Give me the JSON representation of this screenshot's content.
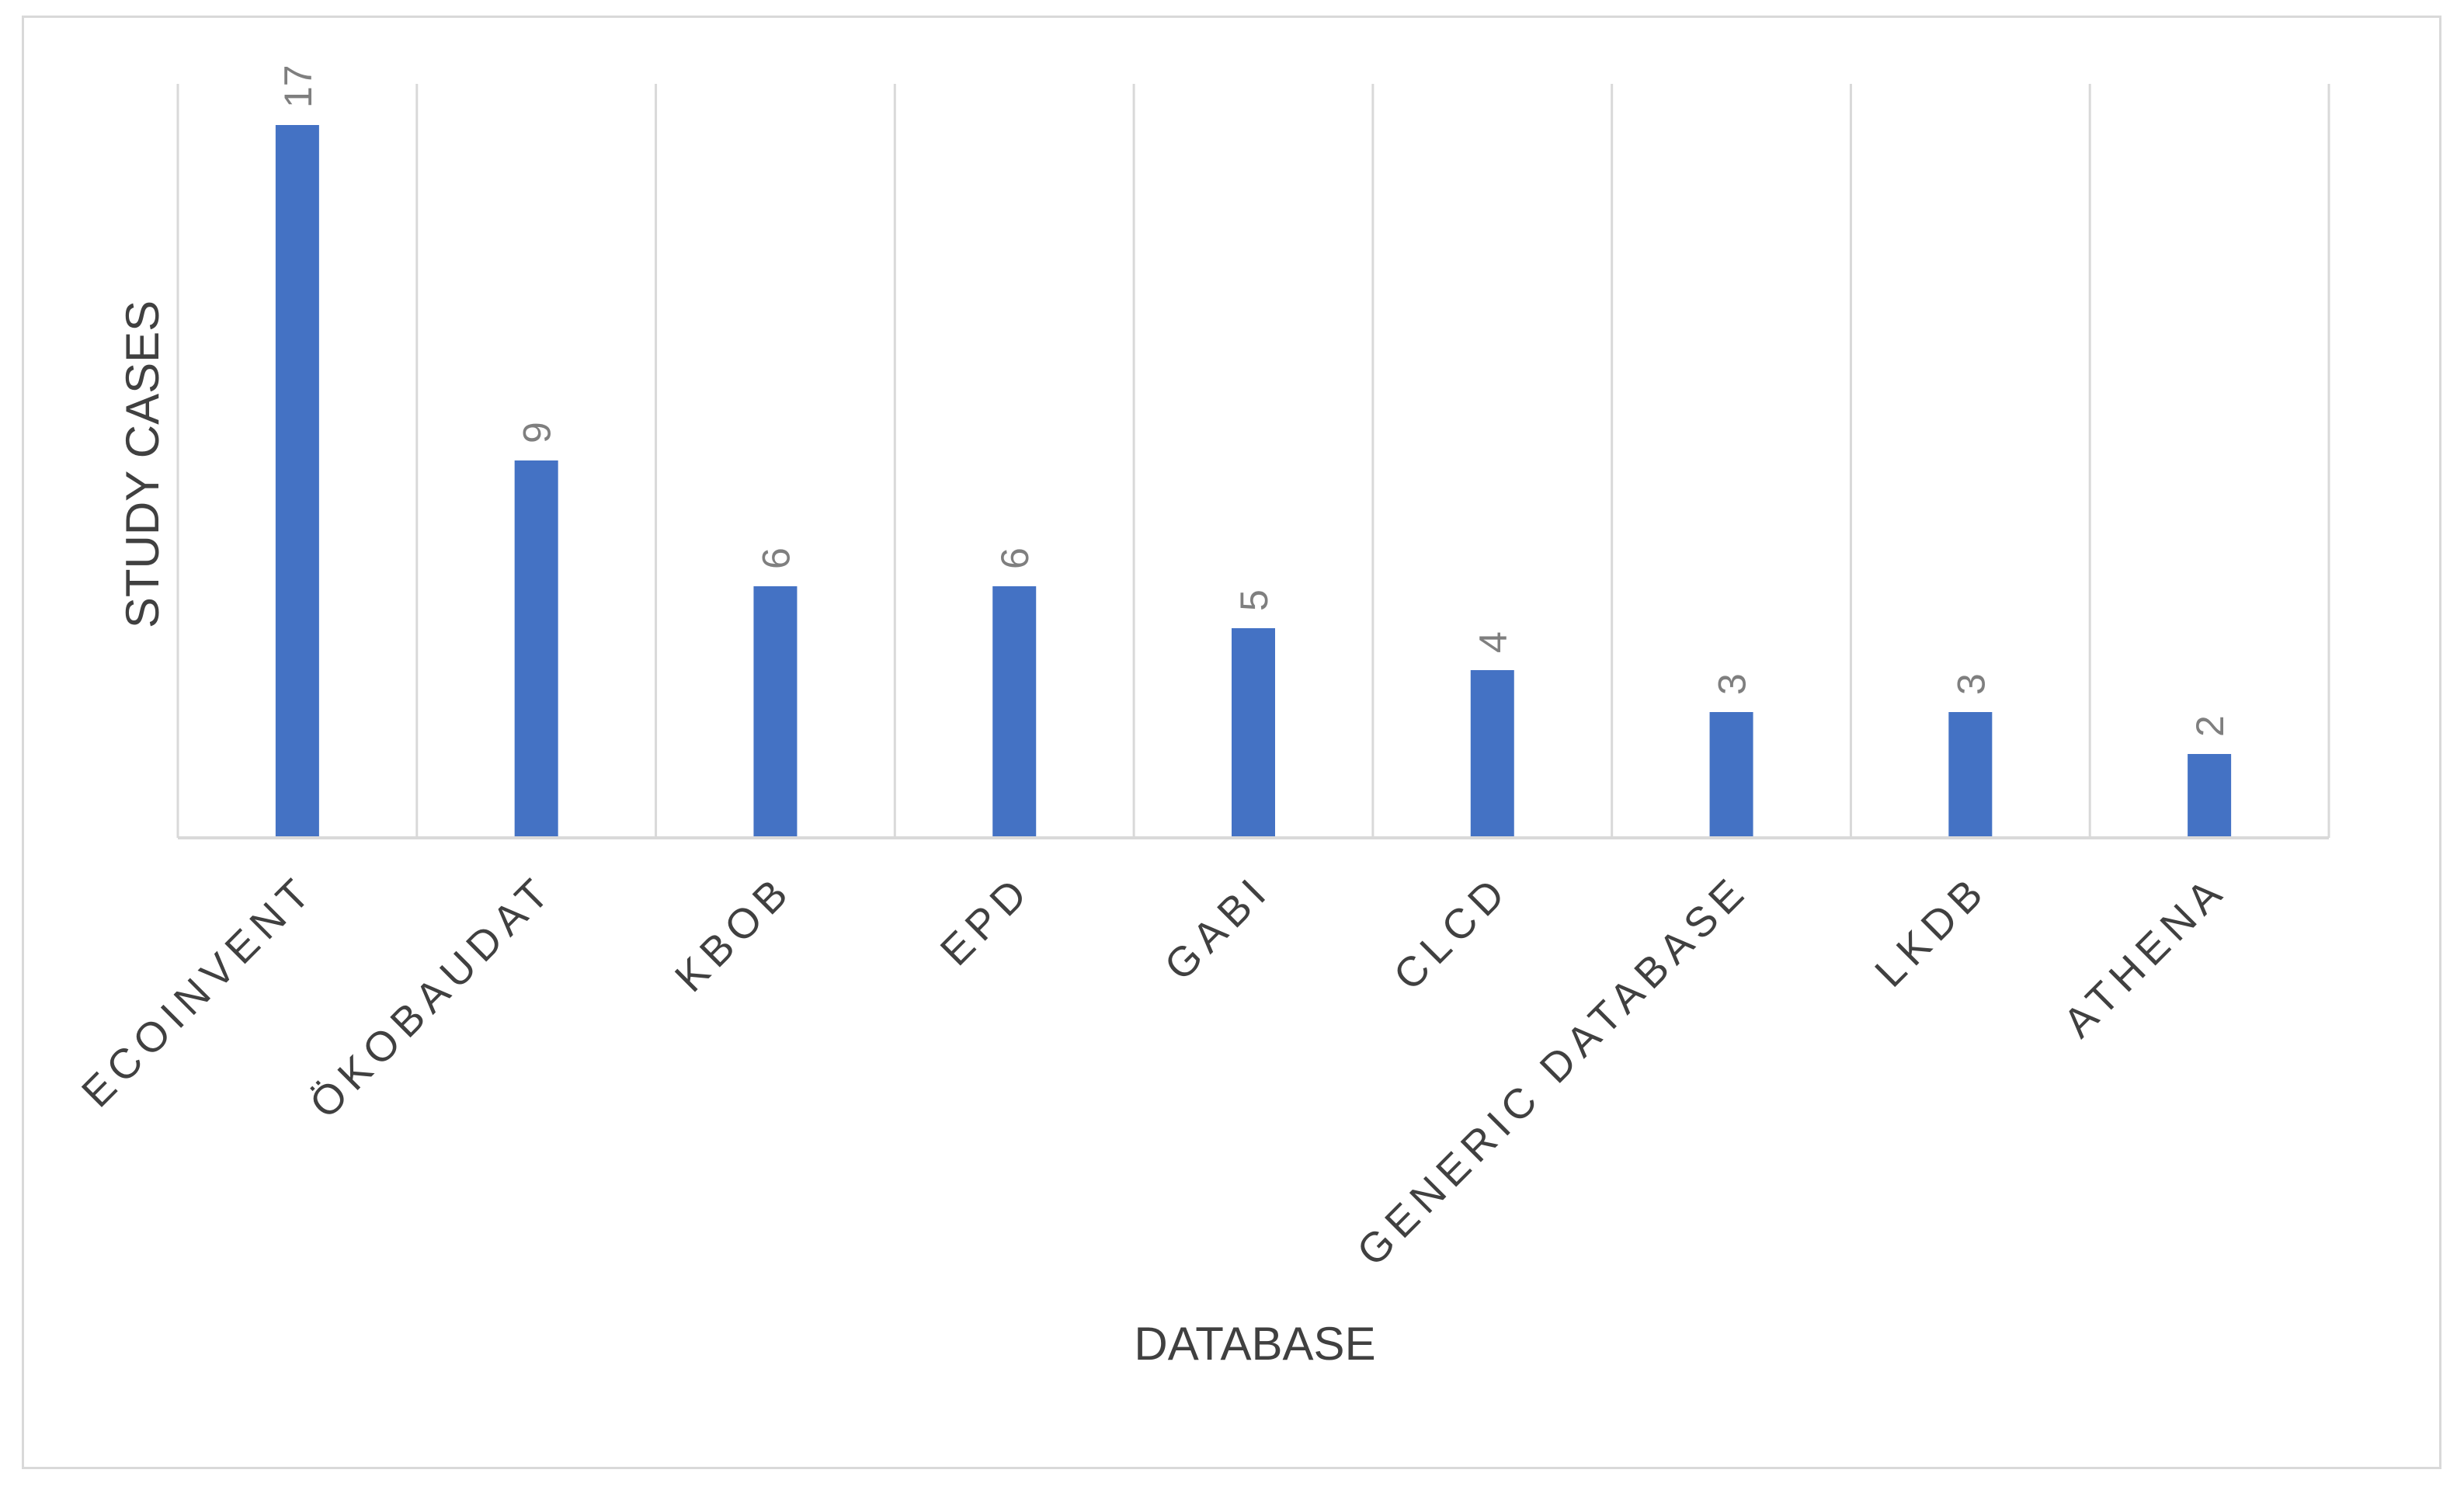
{
  "chart_data": {
    "type": "bar",
    "title": "",
    "xlabel": "DATABASE",
    "ylabel": "STUDY CASES",
    "categories": [
      "ECOINVENT",
      "ÖKOBAUDAT",
      "KBOB",
      "EPD",
      "GABI",
      "CLCD",
      "GENERIC DATABASE",
      "LKDB",
      "ATHENA"
    ],
    "series": [
      {
        "values": [
          17,
          9,
          6,
          6,
          5,
          4,
          3,
          3,
          2
        ]
      }
    ],
    "ylim": [
      0,
      17
    ],
    "grid": "vertical",
    "legend": "none",
    "bar_color": "#4472c4",
    "data_labels": true,
    "data_label_rotation": "vertical"
  }
}
